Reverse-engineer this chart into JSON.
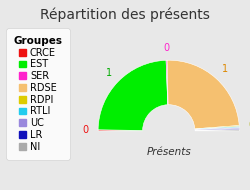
{
  "title": "Répartition des présents",
  "xlabel": "Présents",
  "groups": [
    "CRCE",
    "EST",
    "SER",
    "RDSE",
    "RDPI",
    "RTLI",
    "UC",
    "LR",
    "NI"
  ],
  "values": [
    0.01,
    1,
    0.01,
    1,
    0.01,
    0.01,
    0.01,
    0.01,
    0.01
  ],
  "display_values": [
    0,
    1,
    0,
    1,
    0,
    0,
    0,
    0,
    0
  ],
  "colors": [
    "#ee1111",
    "#00ee00",
    "#ff22cc",
    "#f5c070",
    "#ddcc00",
    "#22ccee",
    "#9988dd",
    "#1111bb",
    "#aaaaaa"
  ],
  "label_colors": [
    "#ee1111",
    "#00aa00",
    "#ff22cc",
    "#dd8800",
    "#aaaa00",
    "#0099bb",
    "#7766bb",
    "#0000aa",
    "#888888"
  ],
  "background_color": "#e8e8e8",
  "title_fontsize": 10,
  "legend_fontsize": 7
}
